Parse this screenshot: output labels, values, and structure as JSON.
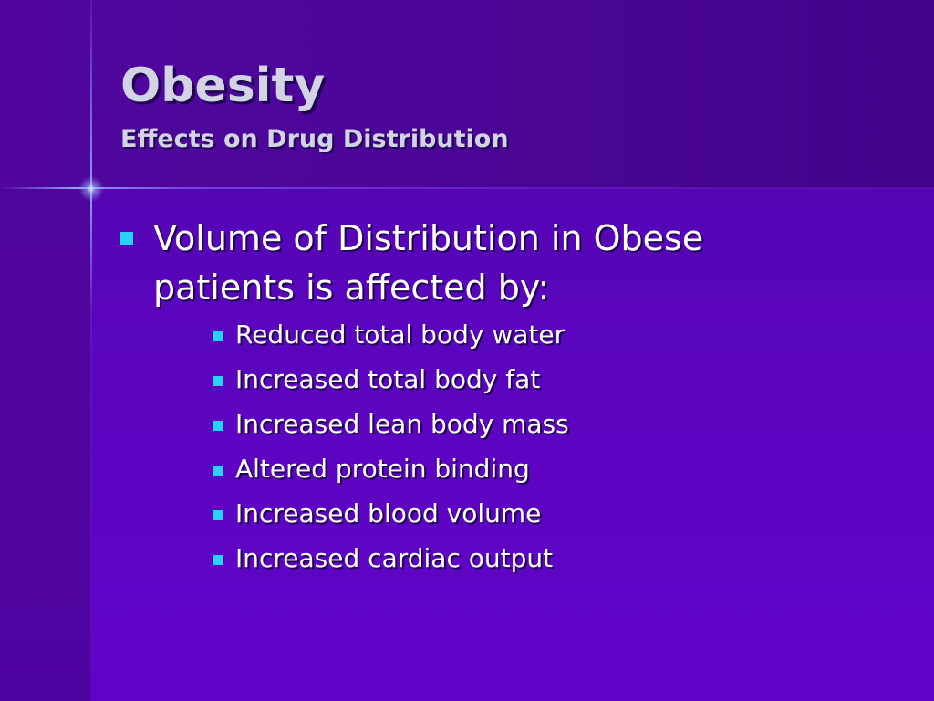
{
  "slide": {
    "title": "Obesity",
    "subtitle": "Effects on Drug Distribution",
    "main_bullet": "Volume of Distribution in Obese patients is affected by:",
    "sub_bullets": [
      "Reduced total body water",
      "Increased total body fat",
      "Increased lean body mass",
      "Altered protein binding",
      "Increased blood volume",
      "Increased cardiac output"
    ]
  },
  "colors": {
    "background": "#5a05bd",
    "title_band": "#4a0594",
    "bullet": "#27d3f6",
    "title_text": "#d3d3e6",
    "body_text": "#ffffff"
  }
}
